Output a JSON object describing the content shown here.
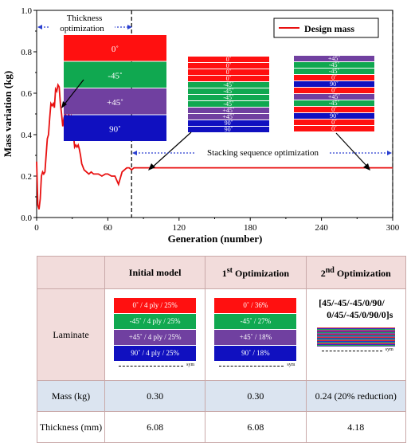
{
  "chart_data": {
    "type": "line",
    "xlabel": "Generation (number)",
    "ylabel": "Mass variation (kg)",
    "xlim": [
      0,
      300
    ],
    "ylim": [
      0.0,
      1.0
    ],
    "x_ticks": [
      "0",
      "60",
      "120",
      "180",
      "240",
      "300"
    ],
    "y_ticks": [
      "0.0",
      "0.2",
      "0.4",
      "0.6",
      "0.8",
      "1.0"
    ],
    "legend_position": "top-right",
    "series": [
      {
        "name": "Design mass",
        "color": "#e81010",
        "x": [
          0,
          1,
          2,
          3,
          4,
          5,
          6,
          7,
          8,
          9,
          10,
          11,
          12,
          13,
          14,
          15,
          16,
          17,
          18,
          19,
          20,
          21,
          22,
          23,
          24,
          25,
          26,
          27,
          28,
          29,
          30,
          31,
          32,
          33,
          34,
          35,
          36,
          37,
          38,
          40,
          42,
          44,
          46,
          48,
          50,
          52,
          55,
          58,
          60,
          63,
          66,
          69,
          72,
          74,
          76,
          78,
          80,
          82,
          84,
          86,
          88,
          90,
          95,
          100,
          110,
          120,
          140,
          160,
          180,
          200,
          220,
          240,
          260,
          280,
          300
        ],
        "y": [
          0.27,
          0.06,
          0.04,
          0.09,
          0.2,
          0.22,
          0.21,
          0.22,
          0.3,
          0.38,
          0.4,
          0.48,
          0.55,
          0.54,
          0.55,
          0.53,
          0.62,
          0.61,
          0.64,
          0.63,
          0.55,
          0.5,
          0.44,
          0.48,
          0.5,
          0.49,
          0.46,
          0.5,
          0.48,
          0.49,
          0.45,
          0.4,
          0.34,
          0.35,
          0.34,
          0.35,
          0.33,
          0.3,
          0.26,
          0.23,
          0.22,
          0.21,
          0.22,
          0.21,
          0.21,
          0.21,
          0.2,
          0.21,
          0.21,
          0.2,
          0.2,
          0.16,
          0.22,
          0.23,
          0.24,
          0.24,
          0.23,
          0.24,
          0.24,
          0.24,
          0.24,
          0.24,
          0.24,
          0.24,
          0.24,
          0.24,
          0.24,
          0.24,
          0.24,
          0.24,
          0.24,
          0.24,
          0.24,
          0.24,
          0.24
        ]
      }
    ],
    "annotations": {
      "thickness_label": "Thickness optimization",
      "stacking_label": "Stacking sequence optimization",
      "vlines_x": [
        80,
        300
      ]
    },
    "inset_stacks": {
      "thickness": [
        "0˚",
        "-45˚",
        "+45˚",
        "90˚"
      ],
      "stack_2": [
        "0˚",
        "0˚",
        "0˚",
        "0˚",
        "-45˚",
        "-45˚",
        "-45˚",
        "-45˚",
        "+45˚",
        "+45˚",
        "90˚",
        "90˚"
      ],
      "stack_3": [
        "+45˚",
        "-45˚",
        "-45˚",
        "0˚",
        "90˚",
        "0˚",
        "+45˚",
        "-45˚",
        "0˚",
        "90˚",
        "0˚",
        "0˚"
      ]
    }
  },
  "table": {
    "headers": {
      "initial": "Initial model",
      "first_num": "1",
      "first_sup": "st",
      "first_rest": " Optimization",
      "second_num": "2",
      "second_sup": "nd",
      "second_rest": " Optimization"
    },
    "rows": {
      "laminate": "Laminate",
      "mass": "Mass (kg)",
      "thickness": "Thickness (mm)"
    },
    "initial_plies": [
      "0˚ / 4 ply / 25%",
      "-45˚ / 4 ply / 25%",
      "+45˚ / 4 ply / 25%",
      "90˚ / 4 ply / 25%"
    ],
    "first_plies": [
      "0˚ / 36%",
      "-45˚ / 27%",
      "+45˚ / 18%",
      "90˚ / 18%"
    ],
    "second_sequence_line1": "[45/-45/-45/0/90/",
    "second_sequence_line2": "0/45/-45/0/90/0]s",
    "sym": "sym",
    "mass_values": [
      "0.30",
      "0.30",
      "0.24 (20% reduction)"
    ],
    "thickness_values": [
      "6.08",
      "6.08",
      "4.18"
    ],
    "ply_colors": {
      "0": "#ff1010",
      "-45": "#10a850",
      "+45": "#7040a0",
      "90": "#1010c0"
    }
  }
}
